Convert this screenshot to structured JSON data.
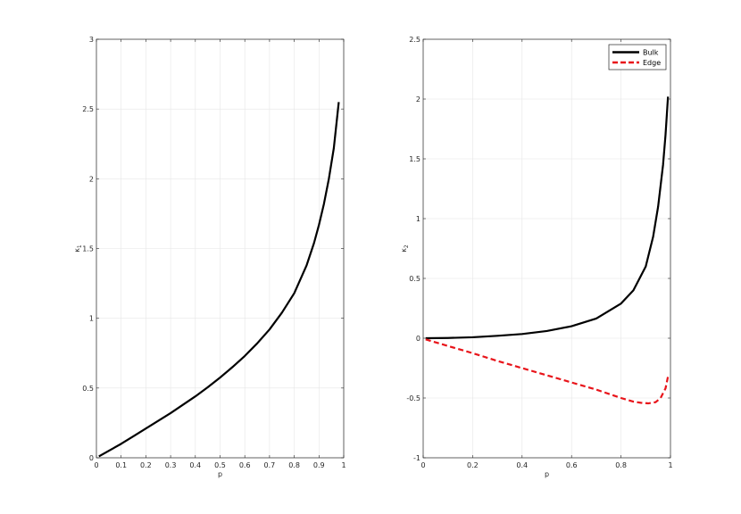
{
  "chart_data": [
    {
      "type": "line",
      "xlabel": "p",
      "ylabel": "κ",
      "ylabel_sub": "1",
      "xlim": [
        0,
        1
      ],
      "ylim": [
        0,
        3
      ],
      "grid": true,
      "x_ticks": [
        0,
        0.1,
        0.2,
        0.3,
        0.4,
        0.5,
        0.6,
        0.7,
        0.8,
        0.9,
        1
      ],
      "x_tick_labels": [
        "0",
        "0.1",
        "0.2",
        "0.3",
        "0.4",
        "0.5",
        "0.6",
        "0.7",
        "0.8",
        "0.9",
        "1"
      ],
      "y_ticks": [
        0,
        0.5,
        1,
        1.5,
        2,
        2.5,
        3
      ],
      "y_tick_labels": [
        "0",
        "0.5",
        "1",
        "1.5",
        "2",
        "2.5",
        "3"
      ],
      "series": [
        {
          "color": "#000000",
          "dash": "solid",
          "x": [
            0.01,
            0.05,
            0.1,
            0.15,
            0.2,
            0.25,
            0.3,
            0.35,
            0.4,
            0.45,
            0.5,
            0.55,
            0.6,
            0.65,
            0.7,
            0.75,
            0.8,
            0.85,
            0.88,
            0.9,
            0.92,
            0.94,
            0.96,
            0.98
          ],
          "y": [
            0.01,
            0.05,
            0.1,
            0.155,
            0.21,
            0.265,
            0.32,
            0.38,
            0.44,
            0.505,
            0.575,
            0.65,
            0.73,
            0.82,
            0.92,
            1.04,
            1.18,
            1.38,
            1.54,
            1.67,
            1.82,
            2.0,
            2.22,
            2.55
          ]
        }
      ]
    },
    {
      "type": "line",
      "xlabel": "p",
      "ylabel": "κ",
      "ylabel_sub": "2",
      "xlim": [
        0,
        1
      ],
      "ylim": [
        -1,
        2.5
      ],
      "grid": true,
      "legend": "top-right",
      "x_ticks": [
        0,
        0.2,
        0.4,
        0.6,
        0.8,
        1
      ],
      "x_tick_labels": [
        "0",
        "0.2",
        "0.4",
        "0.6",
        "0.8",
        "1"
      ],
      "y_ticks": [
        -1,
        -0.5,
        0,
        0.5,
        1,
        1.5,
        2,
        2.5
      ],
      "y_tick_labels": [
        "-1",
        "-0.5",
        "0",
        "0.5",
        "1",
        "1.5",
        "2",
        "2.5"
      ],
      "series": [
        {
          "name": "Bulk",
          "color": "#000000",
          "dash": "solid",
          "x": [
            0.01,
            0.1,
            0.2,
            0.3,
            0.4,
            0.5,
            0.6,
            0.7,
            0.8,
            0.85,
            0.9,
            0.93,
            0.95,
            0.97,
            0.98,
            0.99
          ],
          "y": [
            0.0,
            0.002,
            0.008,
            0.02,
            0.035,
            0.06,
            0.1,
            0.165,
            0.29,
            0.4,
            0.6,
            0.85,
            1.1,
            1.45,
            1.7,
            2.02
          ]
        },
        {
          "name": "Edge",
          "color": "#e8141a",
          "dash": "dashed",
          "x": [
            0.01,
            0.1,
            0.2,
            0.3,
            0.4,
            0.5,
            0.6,
            0.7,
            0.75,
            0.8,
            0.85,
            0.88,
            0.91,
            0.94,
            0.96,
            0.98,
            0.99
          ],
          "y": [
            -0.01,
            -0.065,
            -0.125,
            -0.19,
            -0.25,
            -0.31,
            -0.37,
            -0.43,
            -0.465,
            -0.5,
            -0.53,
            -0.54,
            -0.545,
            -0.535,
            -0.5,
            -0.42,
            -0.32
          ]
        }
      ]
    }
  ]
}
